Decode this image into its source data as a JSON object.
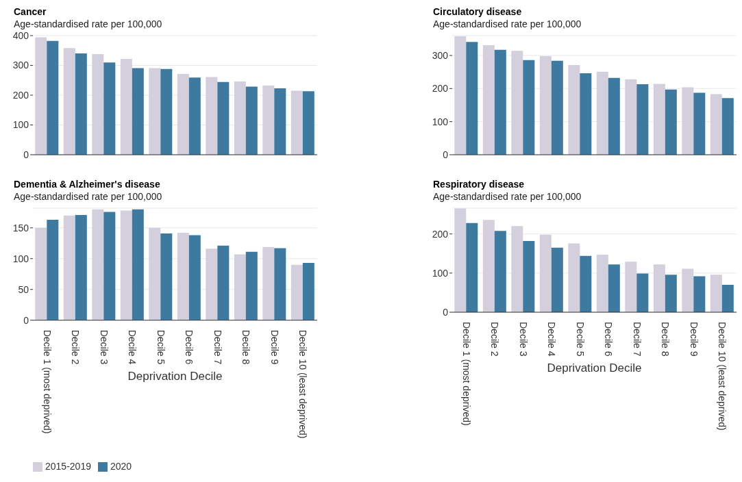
{
  "chart_data": [
    {
      "type": "bar",
      "title": "Cancer",
      "subtitle": "Age-standardised rate per 100,000",
      "categories": [
        null,
        null,
        null,
        null,
        null,
        null,
        null,
        null,
        null,
        null
      ],
      "series": [
        {
          "color": "#d3cfdc",
          "values": [
            394,
            358,
            338,
            322,
            291,
            271,
            261,
            246,
            232,
            215
          ]
        },
        {
          "color": "#3e7aa0",
          "values": [
            382,
            340,
            310,
            291,
            288,
            259,
            244,
            229,
            223,
            213
          ]
        }
      ],
      "ylim": [
        0,
        400
      ],
      "yticks": [
        0,
        100,
        200,
        300,
        400
      ],
      "grid": "y",
      "tick_labels": "y"
    },
    {
      "type": "bar",
      "title": "Circulatory disease",
      "subtitle": "Age-standardised rate per 100,000",
      "categories": [
        null,
        null,
        null,
        null,
        null,
        null,
        null,
        null,
        null,
        null
      ],
      "series": [
        {
          "color": "#d3cfdc",
          "values": [
            358,
            331,
            314,
            298,
            271,
            251,
            228,
            214,
            204,
            183
          ]
        },
        {
          "color": "#3e7aa0",
          "values": [
            341,
            317,
            286,
            284,
            246,
            232,
            213,
            197,
            187,
            171
          ]
        }
      ],
      "ylim": [
        0,
        360
      ],
      "yticks": [
        0,
        100,
        200,
        300
      ],
      "grid": "y",
      "tick_labels": "y"
    },
    {
      "type": "bar",
      "title": "Dementia & Alzheimer's disease",
      "subtitle": "Age-standardised rate per 100,000",
      "xlabel": "Deprivation Decile",
      "categories": [
        "Decile 1 (most deprived)",
        "Decile 2",
        "Decile 3",
        "Decile 4",
        "Decile 5",
        "Decile 6",
        "Decile 7",
        "Decile 8",
        "Decile 9",
        "Decile 10 (least deprived)"
      ],
      "series": [
        {
          "name": "2015-2019",
          "color": "#d3cfdc",
          "values": [
            150,
            170,
            180,
            178,
            150,
            142,
            116,
            107,
            119,
            90
          ]
        },
        {
          "name": "2020",
          "color": "#3e7aa0",
          "values": [
            163,
            171,
            176,
            180,
            141,
            138,
            121,
            111,
            117,
            93
          ]
        }
      ],
      "ylim": [
        0,
        182
      ],
      "yticks": [
        0,
        50,
        100,
        150
      ],
      "grid": "y",
      "legend": "bottom left"
    },
    {
      "type": "bar",
      "title": "Respiratory disease",
      "subtitle": "Age-standardised rate per 100,000",
      "xlabel": "Deprivation Decile",
      "categories": [
        "Decile 1 (most deprived)",
        "Decile 2",
        "Decile 3",
        "Decile 4",
        "Decile 5",
        "Decile 6",
        "Decile 7",
        "Decile 8",
        "Decile 9",
        "Decile 10 (least deprived)"
      ],
      "series": [
        {
          "color": "#d3cfdc",
          "values": [
            265,
            236,
            220,
            198,
            176,
            147,
            129,
            122,
            111,
            96
          ]
        },
        {
          "color": "#3e7aa0",
          "values": [
            228,
            208,
            182,
            165,
            144,
            122,
            99,
            96,
            92,
            70
          ]
        }
      ],
      "ylim": [
        0,
        266
      ],
      "yticks": [
        0,
        100,
        200
      ],
      "grid": "y"
    }
  ]
}
